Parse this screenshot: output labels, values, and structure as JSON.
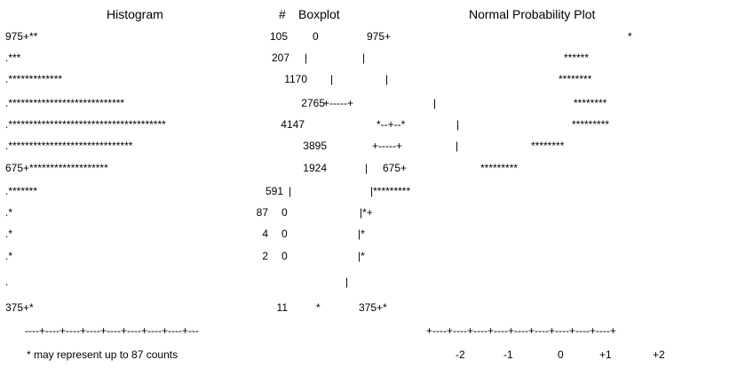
{
  "headers": {
    "histogram": "Histogram",
    "count": "#",
    "boxplot": "Boxplot",
    "npp": "Normal Probability Plot"
  },
  "rows": [
    {
      "hist": "975+**",
      "count": "105",
      "box": "0",
      "axis": "975+",
      "npp": "*"
    },
    {
      "hist": ".***",
      "count": "207",
      "box": "|",
      "axis": "|",
      "npp": "******"
    },
    {
      "hist": ".*************",
      "count": "1170",
      "box": "|",
      "axis": "|",
      "npp": "********"
    },
    {
      "hist": ".****************************",
      "count": "2765",
      "box": "+-----+",
      "axis": "|",
      "npp": "********"
    },
    {
      "hist": ".**************************************",
      "count": "4147",
      "box": "*--+--*",
      "axis": "|",
      "npp": "*********"
    },
    {
      "hist": ".******************************",
      "count": "3895",
      "box": "+-----+",
      "axis": "|",
      "npp": "********"
    },
    {
      "hist": "675+*******************",
      "count": "1924",
      "box": "|",
      "axis": "675+",
      "npp": "*********"
    },
    {
      "hist": ".*******",
      "count": "591",
      "box": "|",
      "axis": "|*********",
      "npp": ""
    },
    {
      "hist": ".*",
      "count": "87",
      "box": "0",
      "axis": "|*+",
      "npp": ""
    },
    {
      "hist": ".*",
      "count": "4",
      "box": "0",
      "axis": "|*",
      "npp": ""
    },
    {
      "hist": ".*",
      "count": "2",
      "box": "0",
      "axis": "|*",
      "npp": ""
    },
    {
      "hist": ".",
      "count": "",
      "box": "",
      "axis": "|",
      "npp": ""
    },
    {
      "hist": "375+*",
      "count": "11",
      "box": "*",
      "axis": "375+*",
      "npp": ""
    }
  ],
  "hist_axis": "----+----+----+----+----+----+----+----+---",
  "npp_axis": "+----+----+----+----+----+----+----+----+----+",
  "npp_ticks": [
    "-2",
    "-1",
    "0",
    "+1",
    "+2"
  ],
  "footnote": "* may represent up to 87 counts",
  "chart_data": {
    "type": "table",
    "bins": [
      "975",
      "",
      "",
      "",
      "",
      "",
      "675",
      "",
      "",
      "",
      "",
      "",
      "375"
    ],
    "counts": [
      105,
      207,
      1170,
      2765,
      4147,
      3895,
      1924,
      591,
      87,
      4,
      2,
      null,
      11
    ],
    "hist_scale_note": "* may represent up to 87 counts",
    "npp_xticks": [
      -2,
      -1,
      0,
      1,
      2
    ]
  }
}
